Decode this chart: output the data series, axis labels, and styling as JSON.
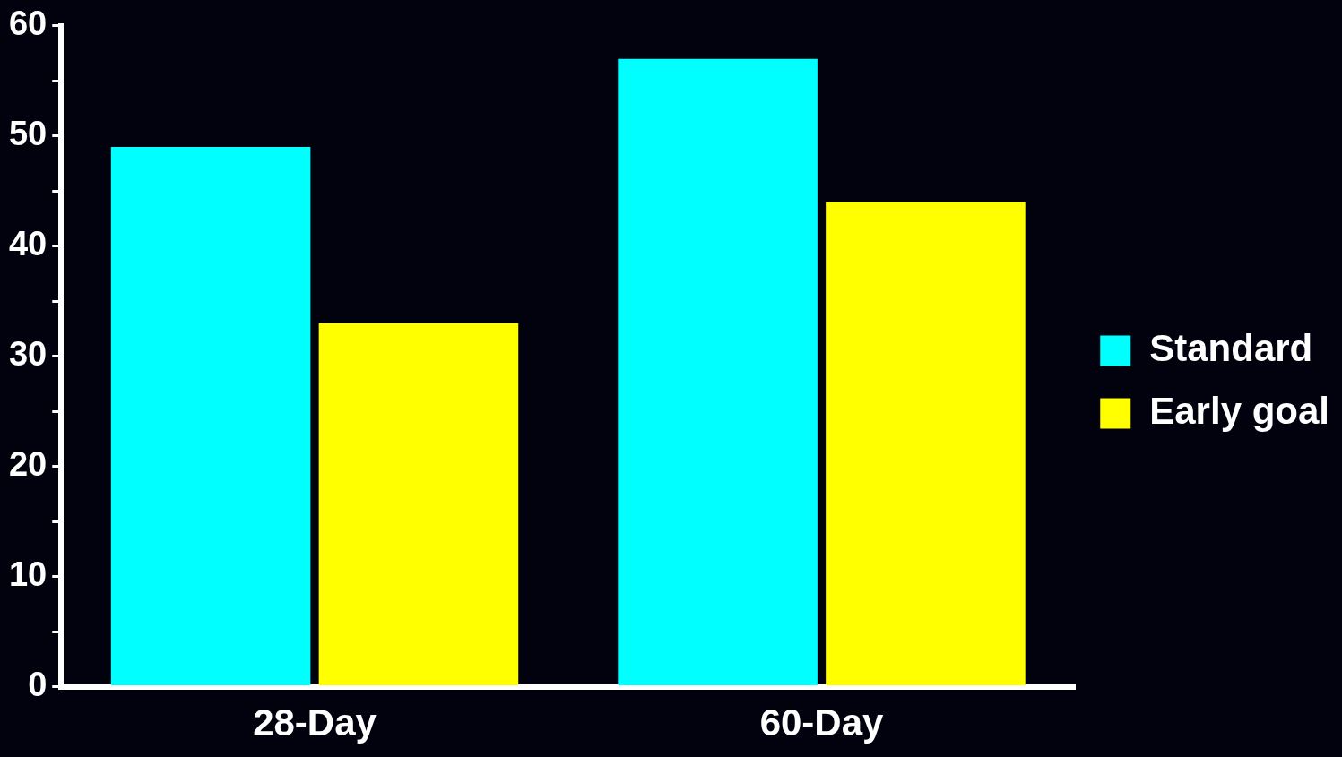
{
  "chart_data": {
    "type": "bar",
    "categories": [
      "28-Day",
      "60-Day"
    ],
    "series": [
      {
        "name": "Standard",
        "color": "#00ffff",
        "values": [
          49,
          57
        ]
      },
      {
        "name": "Early goal",
        "color": "#ffff00",
        "values": [
          33,
          44
        ]
      }
    ],
    "ylim": [
      0,
      60
    ],
    "yticks": [
      0,
      {
        "value": 5,
        "label": null
      },
      10,
      {
        "value": 15,
        "label": null
      },
      20,
      {
        "value": 25,
        "label": null
      },
      30,
      {
        "value": 35,
        "label": null
      },
      40,
      {
        "value": 45,
        "label": null
      },
      50,
      {
        "value": 55,
        "label": null
      },
      60
    ],
    "grid": false,
    "legend": "right"
  }
}
